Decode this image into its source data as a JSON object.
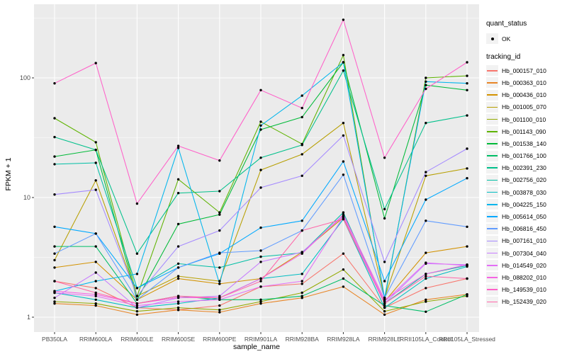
{
  "figure": {
    "xlabel": "sample_name",
    "ylabel": "FPKM + 1"
  },
  "legend": {
    "quant_status_title": "quant_status",
    "quant_status_items": [
      {
        "label": "OK",
        "marker": "point-icon",
        "color": "#000000"
      }
    ],
    "tracking_title": "tracking_id"
  },
  "chart_data": {
    "type": "line",
    "title": "",
    "xlabel": "sample_name",
    "ylabel": "FPKM + 1",
    "yscale": "log10",
    "yticks": [
      1,
      10,
      100
    ],
    "ytick_labels": [
      "1",
      "10",
      "100"
    ],
    "ylim": [
      0.75,
      410
    ],
    "grid": true,
    "legend_position": "right",
    "panel_bg": "#EBEBEB",
    "grid_color": "#FFFFFF",
    "tick_color": "#333333",
    "tick_label_color": "#4D4D4D",
    "point_color": "#000000",
    "categories": [
      "PB350LA",
      "RRIM600LA",
      "RRIM600LE",
      "RRIM600SE",
      "RRIM600PE",
      "RRIM901LA",
      "RRIM928BA",
      "RRIM928LA",
      "RRIM928LE",
      "RRII105LA_Control",
      "RRII105LA_Stressed"
    ],
    "series": [
      {
        "name": "Hb_000157_010",
        "color": "#F8766D",
        "values": [
          2.0,
          1.75,
          1.2,
          1.15,
          1.25,
          1.8,
          1.9,
          3.4,
          1.2,
          1.75,
          2.1
        ]
      },
      {
        "name": "Hb_000363_010",
        "color": "#E88526",
        "values": [
          1.3,
          1.25,
          1.05,
          1.15,
          1.1,
          1.3,
          1.45,
          1.8,
          1.05,
          1.4,
          1.55
        ]
      },
      {
        "name": "Hb_000436_010",
        "color": "#D39200",
        "values": [
          2.6,
          2.9,
          1.4,
          2.1,
          1.9,
          2.1,
          3.5,
          6.8,
          1.35,
          3.45,
          3.9
        ]
      },
      {
        "name": "Hb_001005_070",
        "color": "#B79F00",
        "values": [
          3.0,
          13.9,
          1.5,
          2.2,
          2.0,
          17.0,
          23.0,
          42.0,
          1.45,
          15.2,
          17.5
        ]
      },
      {
        "name": "Hb_001100_010",
        "color": "#93AA00",
        "values": [
          1.35,
          1.3,
          1.12,
          1.2,
          1.15,
          1.35,
          1.6,
          2.5,
          1.12,
          1.35,
          1.5
        ]
      },
      {
        "name": "Hb_001143_090",
        "color": "#5EB300",
        "values": [
          46,
          29,
          1.5,
          14.2,
          7.5,
          43,
          28,
          155,
          1.4,
          100,
          104
        ]
      },
      {
        "name": "Hb_001538_140",
        "color": "#00BA38",
        "values": [
          22,
          25,
          1.4,
          6.0,
          7.2,
          37,
          47,
          135,
          6.7,
          87,
          79
        ]
      },
      {
        "name": "Hb_001766_100",
        "color": "#00BE67",
        "values": [
          3.9,
          3.9,
          1.3,
          1.5,
          1.4,
          1.4,
          1.5,
          2.1,
          1.25,
          1.11,
          1.55
        ]
      },
      {
        "name": "Hb_002391_230",
        "color": "#00C08B",
        "values": [
          32,
          25,
          3.4,
          10.9,
          11.3,
          21.5,
          27.5,
          115,
          8.0,
          42,
          48.5
        ]
      },
      {
        "name": "Hb_002756_020",
        "color": "#00BFA5",
        "values": [
          19,
          19.5,
          1.75,
          2.8,
          2.6,
          3.2,
          3.45,
          7.5,
          1.3,
          2.3,
          2.7
        ]
      },
      {
        "name": "Hb_003878_030",
        "color": "#00BDC2",
        "values": [
          1.6,
          1.4,
          1.2,
          1.3,
          1.45,
          2.1,
          2.3,
          6.6,
          1.2,
          2.1,
          2.65
        ]
      },
      {
        "name": "Hb_004225_150",
        "color": "#00B5EC",
        "values": [
          1.65,
          2.0,
          2.3,
          26,
          1.9,
          40,
          71,
          135,
          1.45,
          93,
          90
        ]
      },
      {
        "name": "Hb_005614_050",
        "color": "#00A9FF",
        "values": [
          5.7,
          5.0,
          1.75,
          2.6,
          3.4,
          5.6,
          6.4,
          20,
          2.0,
          9.6,
          14.5
        ]
      },
      {
        "name": "Hb_006816_450",
        "color": "#619CFF",
        "values": [
          3.4,
          5.0,
          1.4,
          2.6,
          3.45,
          3.6,
          5.3,
          15.5,
          1.45,
          6.4,
          5.7
        ]
      },
      {
        "name": "Hb_007161_010",
        "color": "#A58AFF",
        "values": [
          10.6,
          11.6,
          1.5,
          3.9,
          5.3,
          12.1,
          15.2,
          33,
          2.9,
          16.3,
          25.6
        ]
      },
      {
        "name": "Hb_007304_040",
        "color": "#C77CFF",
        "values": [
          1.45,
          2.36,
          1.2,
          1.45,
          1.5,
          2.9,
          3.5,
          7.0,
          1.3,
          2.8,
          2.75
        ]
      },
      {
        "name": "Hb_014549_020",
        "color": "#E36EF6",
        "values": [
          1.6,
          1.5,
          1.25,
          1.35,
          1.4,
          1.8,
          2.0,
          6.9,
          1.35,
          2.85,
          2.7
        ]
      },
      {
        "name": "Hb_088202_010",
        "color": "#F564E3",
        "values": [
          1.65,
          1.55,
          1.3,
          1.46,
          1.45,
          2.1,
          3.4,
          7.2,
          1.4,
          2.3,
          2.75
        ]
      },
      {
        "name": "Hb_149539_010",
        "color": "#FF61C9",
        "values": [
          90,
          133,
          8.9,
          27,
          20.4,
          79,
          56,
          306,
          21.5,
          81,
          135
        ]
      },
      {
        "name": "Hb_152439_020",
        "color": "#FF67A9",
        "values": [
          2.0,
          1.6,
          1.3,
          1.5,
          1.45,
          2.0,
          5.3,
          6.6,
          1.3,
          2.2,
          2.1
        ]
      }
    ]
  }
}
